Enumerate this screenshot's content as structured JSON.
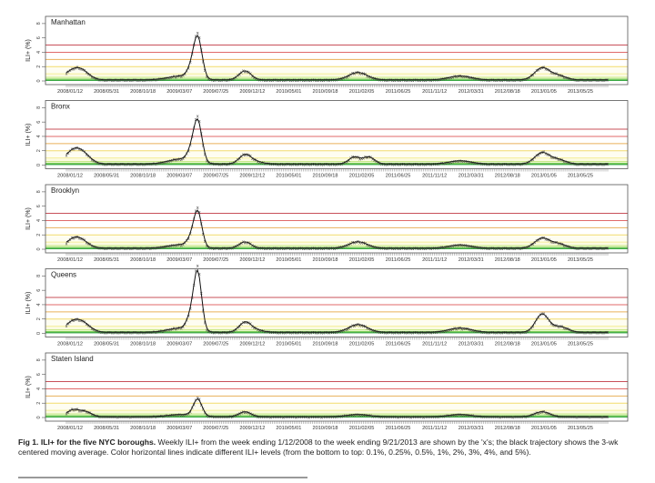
{
  "figure": {
    "caption_bold": "Fig 1. ILI+ for the five NYC boroughs.",
    "caption_text": " Weekly ILI+ from the week ending 1/12/2008 to the week ending 9/21/2013 are shown by the 'x's; the black trajectory shows the 3-wk centered moving average. Color horizontal lines indicate different ILI+ levels (from the bottom to top: 0.1%, 0.25%, 0.5%, 1%, 2%, 3%, 4%, and 5%)."
  },
  "chart_data": {
    "type": "line",
    "title": "ILI+ for the five NYC boroughs",
    "ylabel": "ILI+ (%)",
    "xlabel": "",
    "ylim": [
      0,
      9
    ],
    "yticks": [
      0,
      2,
      4,
      6,
      8
    ],
    "x_range": [
      "2008/01/12",
      "2013/09/21"
    ],
    "xtick_labels": [
      "2008/01/12",
      "2008/05/31",
      "2008/10/18",
      "2009/03/07",
      "2009/07/25",
      "2009/12/12",
      "2010/05/01",
      "2010/09/18",
      "2011/02/05",
      "2011/06/25",
      "2011/11/12",
      "2012/03/31",
      "2012/08/18",
      "2013/01/05",
      "2013/05/25"
    ],
    "xtick_interval_weeks": 20,
    "n_weeks": 298,
    "threshold_lines": [
      {
        "level": 0.1,
        "color": "#1f9a2a"
      },
      {
        "level": 0.25,
        "color": "#7fcf5a"
      },
      {
        "level": 0.5,
        "color": "#c9e88a"
      },
      {
        "level": 1,
        "color": "#f5ee9a"
      },
      {
        "level": 2,
        "color": "#f2dc6e"
      },
      {
        "level": 3,
        "color": "#eab05a"
      },
      {
        "level": 4,
        "color": "#e06a6a"
      },
      {
        "level": 5,
        "color": "#c8505a"
      }
    ],
    "band_fills": [
      {
        "from": 0,
        "to": 0.1,
        "color": "#2faa3a"
      },
      {
        "from": 0.1,
        "to": 0.25,
        "color": "#8ed86a"
      },
      {
        "from": 0.25,
        "to": 0.5,
        "color": "#d3f0a0"
      },
      {
        "from": 0.5,
        "to": 1,
        "color": "#f8f6c8"
      },
      {
        "from": 1,
        "to": 2,
        "color": "#fdfbe6"
      }
    ],
    "series_note": "Weekly peaks (week index from 2008/01/12, approximate ILI+ %) used to reconstruct the curves",
    "series": [
      {
        "name": "Manhattan",
        "baseline": 0.15,
        "peaks": [
          [
            4,
            1.3,
            5
          ],
          [
            9,
            0.7,
            4
          ],
          [
            63,
            0.55,
            7
          ],
          [
            68,
            0.9,
            2
          ],
          [
            72,
            6.2,
            2.2
          ],
          [
            98,
            1.3,
            3.2
          ],
          [
            160,
            1.05,
            5
          ],
          [
            216,
            0.55,
            6
          ],
          [
            261,
            1.7,
            4
          ],
          [
            270,
            0.6,
            4
          ]
        ]
      },
      {
        "name": "Bronx",
        "baseline": 0.15,
        "peaks": [
          [
            4,
            1.9,
            4.5
          ],
          [
            10,
            0.9,
            4
          ],
          [
            63,
            0.7,
            7
          ],
          [
            68,
            1.0,
            2
          ],
          [
            72,
            6.2,
            2.2
          ],
          [
            98,
            1.3,
            3.2
          ],
          [
            104,
            0.3,
            4
          ],
          [
            158,
            1.0,
            3
          ],
          [
            166,
            1.0,
            3
          ],
          [
            216,
            0.45,
            6
          ],
          [
            261,
            1.6,
            4
          ],
          [
            270,
            0.6,
            4
          ]
        ]
      },
      {
        "name": "Brooklyn",
        "baseline": 0.15,
        "peaks": [
          [
            4,
            1.2,
            4
          ],
          [
            9,
            0.7,
            4
          ],
          [
            63,
            0.5,
            7
          ],
          [
            68,
            0.8,
            2
          ],
          [
            72,
            5.3,
            2.1
          ],
          [
            98,
            0.9,
            3.2
          ],
          [
            160,
            0.9,
            5
          ],
          [
            216,
            0.45,
            6
          ],
          [
            261,
            1.4,
            4
          ],
          [
            270,
            0.6,
            4
          ]
        ]
      },
      {
        "name": "Queens",
        "baseline": 0.15,
        "peaks": [
          [
            4,
            1.5,
            4.5
          ],
          [
            10,
            0.8,
            4
          ],
          [
            63,
            0.6,
            7
          ],
          [
            68,
            1.7,
            2
          ],
          [
            72,
            8.8,
            2.0
          ],
          [
            98,
            1.4,
            3.2
          ],
          [
            104,
            0.3,
            4
          ],
          [
            160,
            1.1,
            5
          ],
          [
            216,
            0.6,
            6
          ],
          [
            261,
            2.6,
            3.5
          ],
          [
            271,
            0.8,
            4
          ]
        ]
      },
      {
        "name": "Staten Island",
        "baseline": 0.12,
        "peaks": [
          [
            4,
            1.0,
            3.5
          ],
          [
            11,
            0.6,
            3
          ],
          [
            63,
            0.3,
            7
          ],
          [
            72,
            2.5,
            2.2
          ],
          [
            98,
            0.7,
            3.2
          ],
          [
            160,
            0.3,
            6
          ],
          [
            216,
            0.3,
            6
          ],
          [
            261,
            0.7,
            4
          ]
        ]
      }
    ]
  }
}
